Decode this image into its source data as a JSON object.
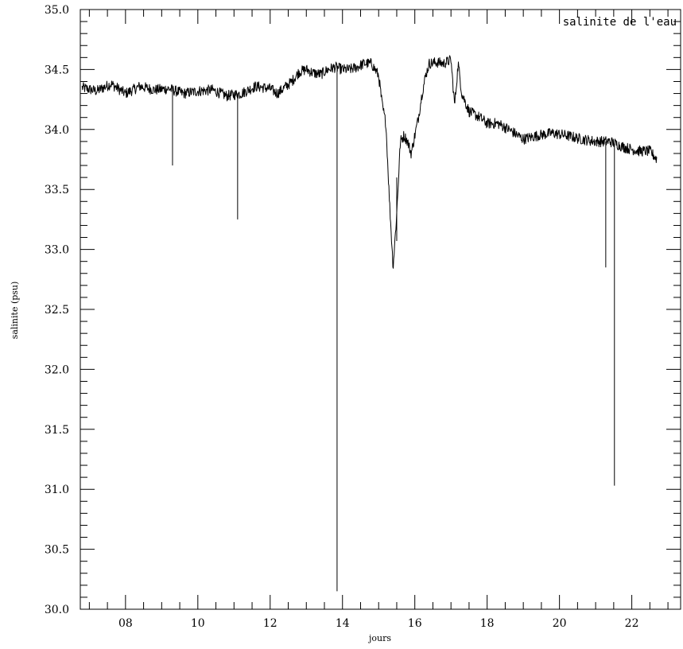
{
  "chart_data": {
    "type": "line",
    "title": "",
    "annotation": "salinite de l'eau",
    "xlabel": "jours",
    "ylabel": "salinite (psu)",
    "xlim": [
      6.75,
      23.35
    ],
    "ylim": [
      30.0,
      35.0
    ],
    "x_major_ticks": [
      8,
      10,
      12,
      14,
      16,
      18,
      20,
      22
    ],
    "x_tick_labels": [
      "08",
      "10",
      "12",
      "14",
      "16",
      "18",
      "20",
      "22"
    ],
    "y_major_ticks": [
      30.0,
      30.5,
      31.0,
      31.5,
      32.0,
      32.5,
      33.0,
      33.5,
      34.0,
      34.5,
      35.0
    ],
    "y_tick_labels": [
      "30.0",
      "30.5",
      "31.0",
      "31.5",
      "32.0",
      "32.5",
      "33.0",
      "33.5",
      "34.0",
      "34.5",
      "35.0"
    ],
    "grid": false,
    "line_color": "#000000",
    "series": [
      {
        "name": "",
        "x": [
          6.8,
          7.2,
          7.6,
          8.0,
          8.4,
          8.8,
          9.2,
          9.6,
          10.0,
          10.4,
          10.8,
          11.2,
          11.6,
          12.0,
          12.2,
          12.4,
          12.6,
          12.8,
          13.0,
          13.2,
          13.4,
          13.6,
          13.8,
          14.0,
          14.2,
          14.4,
          14.6,
          14.8,
          15.0,
          15.1,
          15.2,
          15.3,
          15.4,
          15.5,
          15.6,
          15.7,
          15.8,
          15.9,
          16.0,
          16.1,
          16.2,
          16.3,
          16.4,
          16.6,
          16.8,
          17.0,
          17.1,
          17.2,
          17.3,
          17.5,
          17.8,
          18.0,
          18.3,
          18.6,
          19.0,
          19.4,
          19.8,
          20.2,
          20.6,
          21.0,
          21.4,
          21.8,
          22.2,
          22.5,
          22.7
        ],
        "y": [
          34.35,
          34.32,
          34.38,
          34.3,
          34.36,
          34.33,
          34.34,
          34.3,
          34.32,
          34.33,
          34.28,
          34.3,
          34.36,
          34.34,
          34.3,
          34.35,
          34.4,
          34.48,
          34.5,
          34.47,
          34.46,
          34.5,
          34.52,
          34.5,
          34.5,
          34.52,
          34.55,
          34.55,
          34.45,
          34.2,
          34.05,
          33.4,
          32.85,
          33.3,
          33.9,
          33.95,
          33.9,
          33.8,
          33.95,
          34.1,
          34.3,
          34.45,
          34.55,
          34.56,
          34.55,
          34.58,
          34.2,
          34.55,
          34.3,
          34.15,
          34.1,
          34.05,
          34.05,
          34.0,
          33.92,
          33.95,
          33.97,
          33.95,
          33.92,
          33.9,
          33.9,
          33.85,
          33.82,
          33.82,
          33.75
        ]
      }
    ],
    "spikes": [
      {
        "x": 9.3,
        "from": 34.33,
        "to": 33.7
      },
      {
        "x": 11.1,
        "from": 34.3,
        "to": 33.25
      },
      {
        "x": 13.85,
        "from": 34.5,
        "to": 30.15
      },
      {
        "x": 15.5,
        "from": 33.6,
        "to": 33.07
      },
      {
        "x": 21.28,
        "from": 33.9,
        "to": 32.85
      },
      {
        "x": 21.52,
        "from": 33.88,
        "to": 31.03
      }
    ]
  }
}
